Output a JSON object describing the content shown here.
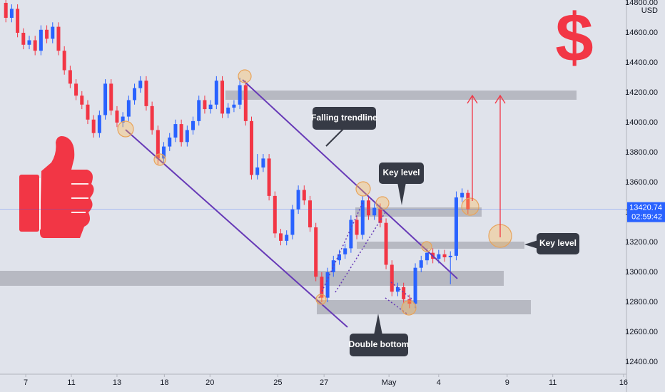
{
  "chart_data": {
    "type": "candlestick",
    "currency": "USD",
    "up_color": "#2962ff",
    "down_color": "#f23645",
    "grid": false,
    "ylim": [
      12319,
      14819
    ],
    "yticks": [
      {
        "value": 12400,
        "label": "12400.00"
      },
      {
        "value": 12600,
        "label": "12600.00"
      },
      {
        "value": 12800,
        "label": "12800.00"
      },
      {
        "value": 13000,
        "label": "13000.00"
      },
      {
        "value": 13200,
        "label": "13200.00"
      },
      {
        "value": 13400,
        "label": "13400.00"
      },
      {
        "value": 13600,
        "label": "13600.00"
      },
      {
        "value": 13800,
        "label": "13800.00"
      },
      {
        "value": 14000,
        "label": "14000.00"
      },
      {
        "value": 14200,
        "label": "14200.00"
      },
      {
        "value": 14400,
        "label": "14400.00"
      },
      {
        "value": 14600,
        "label": "14600.00"
      },
      {
        "value": 14800,
        "label": "14800.00"
      }
    ],
    "xlim": [
      -1,
      106.1
    ],
    "xticks": [
      {
        "value": 3.4,
        "label": "7"
      },
      {
        "value": 11.2,
        "label": "11"
      },
      {
        "value": 19.0,
        "label": "13"
      },
      {
        "value": 27.1,
        "label": "18"
      },
      {
        "value": 34.9,
        "label": "20"
      },
      {
        "value": 46.5,
        "label": "25"
      },
      {
        "value": 54.4,
        "label": "27"
      },
      {
        "value": 65.5,
        "label": "May"
      },
      {
        "value": 74.0,
        "label": "4"
      },
      {
        "value": 85.7,
        "label": "9"
      },
      {
        "value": 93.5,
        "label": "11"
      },
      {
        "value": 105.6,
        "label": "16"
      }
    ],
    "open": [
      14800,
      14700,
      14760,
      14600,
      14520,
      14550,
      14480,
      14620,
      14560,
      14640,
      14480,
      14350,
      14260,
      14180,
      14120,
      14020,
      13930,
      14050,
      14260,
      14080,
      14000,
      14040,
      14150,
      14230,
      14280,
      14110,
      13950,
      13760,
      13840,
      13900,
      13990,
      13870,
      13950,
      14010,
      14150,
      14090,
      14120,
      14280,
      14060,
      14100,
      14120,
      14250,
      14010,
      13650,
      13700,
      13760,
      13510,
      13260,
      13210,
      13250,
      13420,
      13550,
      13480,
      13300,
      12970,
      12830,
      13000,
      13080,
      13120,
      13160,
      13350,
      13250,
      13480,
      13380,
      13430,
      13330,
      13050,
      12870,
      12900,
      12820,
      12790,
      13030,
      13080,
      13130,
      13090,
      13120,
      13100,
      13110,
      13500,
      13530
    ],
    "high": [
      14830,
      14790,
      14790,
      14630,
      14580,
      14580,
      14650,
      14650,
      14670,
      14670,
      14510,
      14380,
      14290,
      14210,
      14150,
      14050,
      14080,
      14290,
      14290,
      14110,
      14070,
      14180,
      14260,
      14310,
      14310,
      14140,
      13980,
      13870,
      13930,
      14020,
      14020,
      13980,
      14040,
      14180,
      14180,
      14150,
      14310,
      14310,
      14130,
      14150,
      14300,
      14280,
      14040,
      13790,
      13790,
      13790,
      13540,
      13290,
      13280,
      13450,
      13580,
      13580,
      13510,
      13330,
      13000,
      13030,
      13110,
      13150,
      13190,
      13380,
      13380,
      13510,
      13510,
      13460,
      13460,
      13360,
      13080,
      12930,
      12930,
      12850,
      13060,
      13110,
      13160,
      13160,
      13150,
      13150,
      13140,
      13540,
      13560,
      13550
    ],
    "low": [
      14670,
      14670,
      14570,
      14490,
      14490,
      14450,
      14450,
      14530,
      14530,
      14450,
      14320,
      14230,
      14150,
      14090,
      13990,
      13900,
      13900,
      14020,
      14050,
      13970,
      13970,
      14010,
      14120,
      14200,
      14080,
      13920,
      13720,
      13730,
      13810,
      13870,
      13840,
      13840,
      13920,
      13980,
      14060,
      14060,
      14090,
      14030,
      14030,
      14070,
      14090,
      13980,
      13620,
      13620,
      13670,
      13480,
      13230,
      13180,
      13180,
      13220,
      13390,
      13450,
      13270,
      12940,
      12800,
      12800,
      12970,
      13050,
      13090,
      13130,
      13220,
      13220,
      13350,
      13350,
      13300,
      13020,
      12840,
      12840,
      12790,
      12760,
      12760,
      13000,
      13050,
      13060,
      13060,
      13070,
      12920,
      13080,
      13470,
      13390
    ],
    "close": [
      14700,
      14760,
      14600,
      14520,
      14550,
      14480,
      14620,
      14560,
      14640,
      14480,
      14350,
      14260,
      14180,
      14120,
      14020,
      13930,
      14050,
      14260,
      14080,
      14000,
      14040,
      14150,
      14230,
      14280,
      14110,
      13950,
      13760,
      13840,
      13900,
      13990,
      13870,
      13950,
      14010,
      14150,
      14090,
      14120,
      14280,
      14060,
      14100,
      14120,
      14250,
      14010,
      13650,
      13700,
      13760,
      13510,
      13260,
      13210,
      13250,
      13420,
      13550,
      13480,
      13300,
      12970,
      12830,
      13000,
      13080,
      13120,
      13160,
      13350,
      13250,
      13480,
      13380,
      13430,
      13330,
      13050,
      12870,
      12900,
      12820,
      12790,
      13030,
      13080,
      13130,
      13090,
      13120,
      13100,
      13110,
      13500,
      13530,
      13420.74
    ],
    "last_price": 13420.74,
    "countdown": "02:59:42",
    "annotations": {
      "falling_trendline": "Falling trendline",
      "key_level_top": "Key level",
      "key_level_right": "Key level",
      "double_bottom": "Double bottom",
      "dollar": "$"
    }
  }
}
